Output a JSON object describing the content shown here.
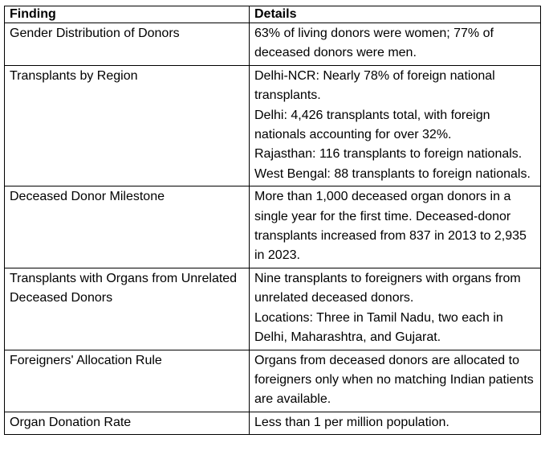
{
  "table": {
    "headers": [
      "Finding",
      "Details"
    ],
    "rows": [
      {
        "finding": "Gender Distribution of Donors",
        "details": [
          "63% of living donors were women; 77% of deceased donors were men."
        ]
      },
      {
        "finding": "Transplants by Region",
        "details": [
          "Delhi-NCR: Nearly 78% of foreign national transplants.",
          "Delhi: 4,426 transplants total, with foreign nationals accounting for over 32%.",
          "Rajasthan: 116 transplants to foreign nationals.",
          "West Bengal: 88 transplants to foreign nationals."
        ]
      },
      {
        "finding": "Deceased Donor Milestone",
        "details": [
          "More than 1,000 deceased organ donors in a single year for the first time. Deceased-donor transplants increased from 837 in 2013 to 2,935 in 2023."
        ]
      },
      {
        "finding": "Transplants with Organs from Unrelated Deceased Donors",
        "details": [
          "Nine transplants to foreigners with organs from unrelated deceased donors.",
          "Locations: Three in Tamil Nadu, two each in Delhi, Maharashtra, and Gujarat."
        ]
      },
      {
        "finding": "Foreigners' Allocation Rule",
        "details": [
          "Organs from deceased donors are allocated to foreigners only when no matching Indian patients are available."
        ]
      },
      {
        "finding": "Organ Donation Rate",
        "details": [
          "Less than 1 per million population."
        ]
      }
    ]
  }
}
